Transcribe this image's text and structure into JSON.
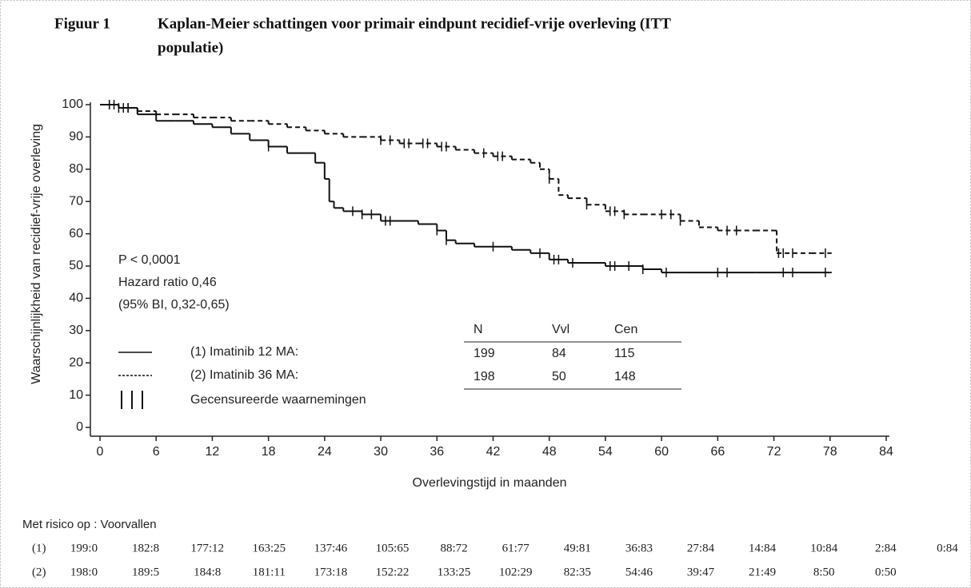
{
  "chart_data": {
    "type": "step",
    "title_label": "Figuur 1",
    "title": "Kaplan-Meier schattingen voor primair eindpunt recidief-vrije overleving (ITT",
    "title_line2": "populatie)",
    "xlabel": "Overlevingstijd in maanden",
    "ylabel": "Waarschijnlijkheid van recidief-vrije overleving",
    "xlim": [
      0,
      84
    ],
    "ylim": [
      0,
      100
    ],
    "xticks": [
      0,
      6,
      12,
      18,
      24,
      30,
      36,
      42,
      48,
      54,
      60,
      66,
      72,
      78,
      84
    ],
    "yticks": [
      0,
      10,
      20,
      30,
      40,
      50,
      60,
      70,
      80,
      90,
      100
    ],
    "grid": false,
    "annotations": [
      "P < 0,0001",
      "Hazard ratio 0,46",
      "(95% BI, 0,32-0,65)"
    ],
    "legend_table": {
      "headers": [
        "N",
        "Vvl",
        "Cen"
      ],
      "censor_label": "Gecensureerde waarnemingen"
    },
    "series": [
      {
        "name": "(1) Imatinib 12 MA:",
        "color": "#111111",
        "style": "solid",
        "n": 199,
        "events": 84,
        "censored_count": 115,
        "x": [
          0,
          2,
          4,
          6,
          8,
          10,
          12,
          14,
          16,
          18,
          20,
          22,
          23,
          24,
          24.5,
          25,
          26,
          28,
          30,
          32,
          34,
          36,
          37,
          38,
          40,
          42,
          44,
          46,
          48,
          50,
          52,
          54,
          56,
          58,
          60,
          62,
          66,
          70,
          74,
          78
        ],
        "values": [
          100,
          99,
          97,
          95,
          95,
          94,
          93,
          91,
          89,
          87,
          85,
          85,
          82,
          77,
          70,
          68,
          67,
          66,
          64,
          64,
          63,
          61,
          58,
          57,
          56,
          56,
          55,
          54,
          52,
          51,
          51,
          50,
          50,
          49,
          48,
          48,
          48,
          48,
          48,
          48
        ],
        "censored": [
          1,
          1.5,
          2.5,
          3,
          18,
          27,
          28,
          29,
          30.5,
          31,
          36,
          37,
          42,
          47,
          48.5,
          49,
          50.5,
          54.5,
          55,
          56.5,
          58,
          60.5,
          66,
          67,
          73,
          74,
          77.5
        ]
      },
      {
        "name": "(2) Imatinib 36 MA:",
        "color": "#111111",
        "style": "dashed",
        "n": 198,
        "events": 50,
        "censored_count": 148,
        "x": [
          0,
          2,
          4,
          6,
          8,
          10,
          12,
          14,
          16,
          18,
          20,
          22,
          24,
          26,
          28,
          30,
          32,
          34,
          36,
          38,
          40,
          42,
          44,
          46,
          47,
          48,
          49,
          50,
          52,
          54,
          56,
          58,
          60,
          62,
          64,
          66,
          68,
          70,
          72,
          72.3,
          74,
          76,
          78
        ],
        "values": [
          100,
          99,
          98,
          97,
          97,
          96,
          96,
          95,
          95,
          94,
          93,
          92,
          91,
          90,
          90,
          89,
          88,
          88,
          87,
          86,
          85,
          84,
          83,
          82,
          80,
          77,
          72,
          71,
          69,
          67,
          66,
          66,
          66,
          64,
          62,
          61,
          61,
          61,
          61,
          54,
          54,
          54,
          54
        ],
        "censored": [
          1,
          2,
          3,
          30,
          31,
          32.5,
          33,
          34.5,
          35,
          36.5,
          37,
          41,
          42.5,
          43,
          48,
          52,
          54.5,
          55,
          56,
          60,
          61,
          62,
          67,
          68,
          72.5,
          73,
          74,
          77.5
        ]
      }
    ],
    "risk_table": {
      "title": "Met risico op : Voorvallen",
      "rows": [
        {
          "label": "(1)",
          "values": [
            "199:0",
            "182:8",
            "177:12",
            "163:25",
            "137:46",
            "105:65",
            "88:72",
            "61:77",
            "49:81",
            "36:83",
            "27:84",
            "14:84",
            "10:84",
            "2:84",
            "0:84"
          ]
        },
        {
          "label": "(2)",
          "values": [
            "198:0",
            "189:5",
            "184:8",
            "181:11",
            "173:18",
            "152:22",
            "133:25",
            "102:29",
            "82:35",
            "54:46",
            "39:47",
            "21:49",
            "8:50",
            "0:50"
          ]
        }
      ]
    }
  }
}
